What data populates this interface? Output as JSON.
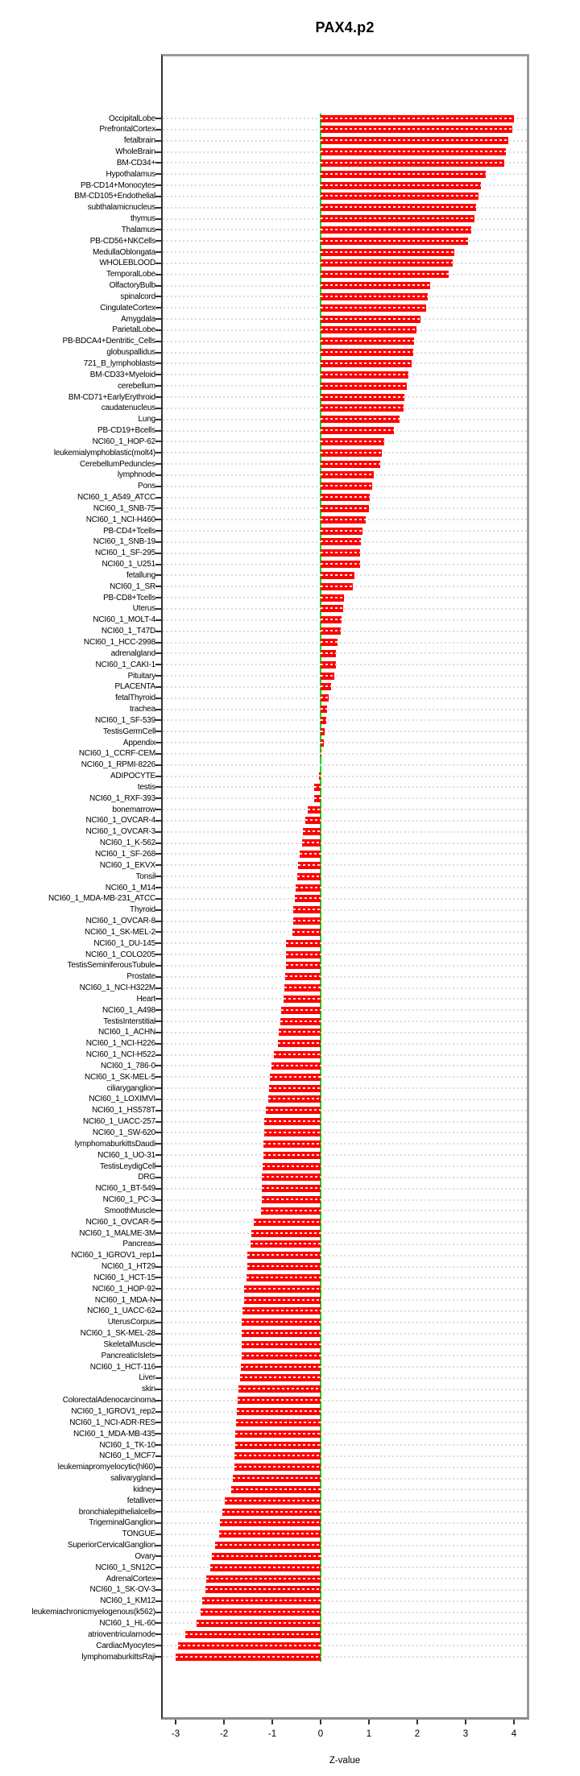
{
  "title": "PAX4.p2",
  "chart_data": {
    "type": "bar",
    "orientation": "horizontal",
    "title": "PAX4.p2",
    "xlabel": "Z-value",
    "ylabel": "",
    "xlim": [
      -3.3,
      4.3
    ],
    "xticks": [
      -3,
      -2,
      -1,
      0,
      1,
      2,
      3,
      4
    ],
    "grid": true,
    "legend": "none",
    "bar_color": "#fe0000",
    "zero_line_color": "#00dc00",
    "grid_color": "#dcdcdc",
    "border_color": "#9a9a9a",
    "categories": [
      "OccipitalLobe",
      "PrefrontalCortex",
      "fetalbrain",
      "WholeBrain",
      "BM-CD34+",
      "Hypothalamus",
      "PB-CD14+Monocytes",
      "BM-CD105+Endothelial",
      "subthalamicnucleus",
      "thymus",
      "Thalamus",
      "PB-CD56+NKCells",
      "MedullaOblongata",
      "WHOLEBLOOD",
      "TemporalLobe",
      "OlfactoryBulb",
      "spinalcord",
      "CingulateCortex",
      "Amygdala",
      "ParietalLobe",
      "PB-BDCA4+Dentritic_Cells",
      "globuspallidus",
      "721_B_lymphoblasts",
      "BM-CD33+Myeloid",
      "cerebellum",
      "BM-CD71+EarlyErythroid",
      "caudatenucleus",
      "Lung",
      "PB-CD19+Bcells",
      "NCI60_1_HOP-62",
      "leukemialymphoblastic(molt4)",
      "CerebellumPeduncles",
      "lymphnode",
      "Pons",
      "NCI60_1_A549_ATCC",
      "NCI60_1_SNB-75",
      "NCI60_1_NCI-H460",
      "PB-CD4+Tcells",
      "NCI60_1_SNB-19",
      "NCI60_1_SF-295",
      "NCI60_1_U251",
      "fetallung",
      "NCI60_1_SR",
      "PB-CD8+Tcells",
      "Uterus",
      "NCI60_1_MOLT-4",
      "NCI60_1_T47D",
      "NCI60_1_HCC-2998",
      "adrenalgland",
      "NCI60_1_CAKI-1",
      "Pituitary",
      "PLACENTA",
      "fetalThyroid",
      "trachea",
      "NCI60_1_SF-539",
      "TestisGermCell",
      "Appendix",
      "NCI60_1_CCRF-CEM",
      "NCI60_1_RPMI-8226",
      "ADIPOCYTE",
      "testis",
      "NCI60_1_RXF-393",
      "bonemarrow",
      "NCI60_1_OVCAR-4",
      "NCI60_1_OVCAR-3",
      "NCI60_1_K-562",
      "NCI60_1_SF-268",
      "NCI60_1_EKVX",
      "Tonsil",
      "NCI60_1_M14",
      "NCI60_1_MDA-MB-231_ATCC",
      "Thyroid",
      "NCI60_1_OVCAR-8",
      "NCI60_1_SK-MEL-2",
      "NCI60_1_DU-145",
      "NCI60_1_COLO205",
      "TestisSeminiferousTubule",
      "Prostate",
      "NCI60_1_NCI-H322M",
      "Heart",
      "NCI60_1_A498",
      "TestisInterstitial",
      "NCI60_1_ACHN",
      "NCI60_1_NCI-H226",
      "NCI60_1_NCI-H522",
      "NCI60_1_786-0",
      "NCI60_1_SK-MEL-5",
      "ciliaryganglion",
      "NCI60_1_LOXIMVI",
      "NCI60_1_HS578T",
      "NCI60_1_UACC-257",
      "NCI60_1_SW-620",
      "lymphomaburkittsDaudi",
      "NCI60_1_UO-31",
      "TestisLeydigCell",
      "DRG",
      "NCI60_1_BT-549",
      "NCI60_1_PC-3",
      "SmoothMuscle",
      "NCI60_1_OVCAR-5",
      "NCI60_1_MALME-3M",
      "Pancreas",
      "NCI60_1_IGROV1_rep1",
      "NCI60_1_HT29",
      "NCI60_1_HCT-15",
      "NCI60_1_HOP-92",
      "NCI60_1_MDA-N",
      "NCI60_1_UACC-62",
      "UterusCorpus",
      "NCI60_1_SK-MEL-28",
      "SkeletalMuscle",
      "PancreaticIslets",
      "NCI60_1_HCT-116",
      "Liver",
      "skin",
      "ColorectalAdenocarcinoma",
      "NCI60_1_IGROV1_rep2",
      "NCI60_1_NCI-ADR-RES",
      "NCI60_1_MDA-MB-435",
      "NCI60_1_TK-10",
      "NCI60_1_MCF7",
      "leukemiapromyelocytic(hl60)",
      "salivarygland",
      "kidney",
      "fetalliver",
      "bronchialepithelialcells",
      "TrigeminalGanglion",
      "TONGUE",
      "SuperiorCervicalGanglion",
      "Ovary",
      "NCI60_1_SN12C",
      "AdrenalCortex",
      "NCI60_1_SK-OV-3",
      "NCI60_1_KM12",
      "leukemiachronicmyelogenous(k562)",
      "NCI60_1_HL-60",
      "atrioventricularnode",
      "CardiacMyocytes",
      "lymphomaburkittsRaji"
    ],
    "values": [
      4.0,
      3.96,
      3.89,
      3.84,
      3.8,
      3.41,
      3.31,
      3.26,
      3.21,
      3.19,
      3.11,
      3.05,
      2.76,
      2.74,
      2.65,
      2.26,
      2.21,
      2.19,
      2.06,
      1.98,
      1.93,
      1.91,
      1.88,
      1.81,
      1.79,
      1.74,
      1.72,
      1.64,
      1.52,
      1.31,
      1.26,
      1.24,
      1.1,
      1.06,
      1.02,
      1.0,
      0.93,
      0.86,
      0.84,
      0.82,
      0.81,
      0.7,
      0.66,
      0.48,
      0.46,
      0.43,
      0.42,
      0.35,
      0.32,
      0.31,
      0.29,
      0.22,
      0.17,
      0.14,
      0.12,
      0.08,
      0.07,
      0.02,
      0.0,
      -0.04,
      -0.13,
      -0.14,
      -0.27,
      -0.31,
      -0.36,
      -0.38,
      -0.44,
      -0.47,
      -0.48,
      -0.52,
      -0.54,
      -0.56,
      -0.57,
      -0.59,
      -0.71,
      -0.72,
      -0.72,
      -0.73,
      -0.75,
      -0.77,
      -0.81,
      -0.84,
      -0.87,
      -0.89,
      -0.97,
      -1.01,
      -1.05,
      -1.07,
      -1.08,
      -1.14,
      -1.16,
      -1.17,
      -1.18,
      -1.19,
      -1.2,
      -1.21,
      -1.21,
      -1.22,
      -1.23,
      -1.39,
      -1.44,
      -1.45,
      -1.51,
      -1.52,
      -1.53,
      -1.58,
      -1.59,
      -1.61,
      -1.63,
      -1.63,
      -1.64,
      -1.64,
      -1.65,
      -1.66,
      -1.7,
      -1.71,
      -1.73,
      -1.75,
      -1.77,
      -1.77,
      -1.78,
      -1.79,
      -1.81,
      -1.85,
      -1.98,
      -2.03,
      -2.08,
      -2.1,
      -2.19,
      -2.25,
      -2.28,
      -2.37,
      -2.39,
      -2.45,
      -2.48,
      -2.56,
      -2.8,
      -2.95,
      -3.0
    ]
  }
}
